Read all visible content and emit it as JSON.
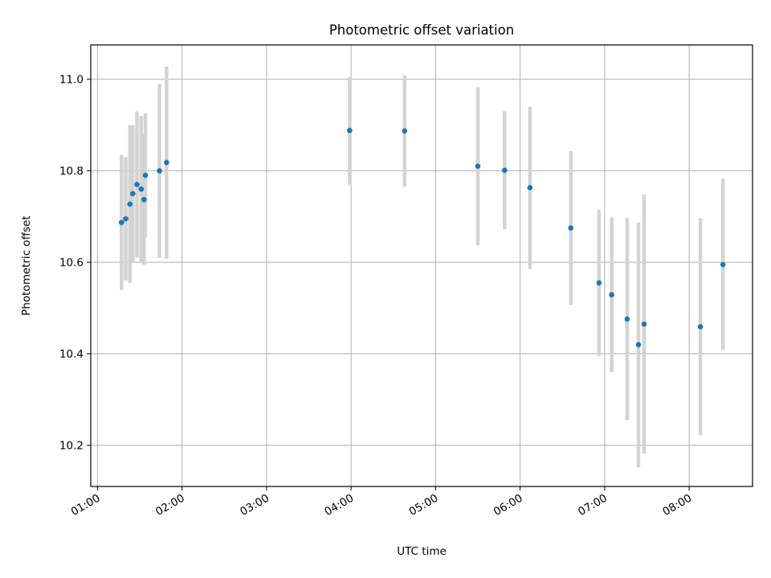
{
  "chart_data": {
    "type": "scatter",
    "title": "Photometric offset variation",
    "xlabel": "UTC time",
    "ylabel": "Photometric offset",
    "x_unit": "UTC time (hours)",
    "xlim": [
      0.92,
      8.75
    ],
    "ylim": [
      10.11,
      11.075
    ],
    "x_ticks": [
      {
        "value": 1,
        "label": "01:00"
      },
      {
        "value": 2,
        "label": "02:00"
      },
      {
        "value": 3,
        "label": "03:00"
      },
      {
        "value": 4,
        "label": "04:00"
      },
      {
        "value": 5,
        "label": "05:00"
      },
      {
        "value": 6,
        "label": "06:00"
      },
      {
        "value": 7,
        "label": "07:00"
      },
      {
        "value": 8,
        "label": "08:00"
      }
    ],
    "y_ticks": [
      {
        "value": 10.2,
        "label": "10.2"
      },
      {
        "value": 10.4,
        "label": "10.4"
      },
      {
        "value": 10.6,
        "label": "10.6"
      },
      {
        "value": 10.8,
        "label": "10.8"
      },
      {
        "value": 11.0,
        "label": "11.0"
      }
    ],
    "grid": true,
    "x_tick_rotation": "rotated",
    "colors": {
      "point": "#1f77b4",
      "errorbar": "#d3d3d3",
      "grid": "#b0b0b0"
    },
    "series": [
      {
        "points": [
          {
            "x": "01:17",
            "y": 10.687,
            "low": 10.54,
            "high": 10.835
          },
          {
            "x": "01:20",
            "y": 10.695,
            "low": 10.56,
            "high": 10.83
          },
          {
            "x": "01:23",
            "y": 10.727,
            "low": 10.555,
            "high": 10.9
          },
          {
            "x": "01:25",
            "y": 10.75,
            "low": 10.6,
            "high": 10.9
          },
          {
            "x": "01:28",
            "y": 10.77,
            "low": 10.61,
            "high": 10.93
          },
          {
            "x": "01:31",
            "y": 10.76,
            "low": 10.6,
            "high": 10.92
          },
          {
            "x": "01:33",
            "y": 10.737,
            "low": 10.595,
            "high": 10.88
          },
          {
            "x": "01:34",
            "y": 10.79,
            "low": 10.655,
            "high": 10.925
          },
          {
            "x": "01:44",
            "y": 10.8,
            "low": 10.61,
            "high": 10.99
          },
          {
            "x": "01:49",
            "y": 10.818,
            "low": 10.608,
            "high": 11.028
          },
          {
            "x": "03:59",
            "y": 10.888,
            "low": 10.77,
            "high": 11.005
          },
          {
            "x": "04:38",
            "y": 10.887,
            "low": 10.765,
            "high": 11.008
          },
          {
            "x": "05:30",
            "y": 10.81,
            "low": 10.637,
            "high": 10.983
          },
          {
            "x": "05:49",
            "y": 10.801,
            "low": 10.672,
            "high": 10.93
          },
          {
            "x": "06:07",
            "y": 10.763,
            "low": 10.585,
            "high": 10.94
          },
          {
            "x": "06:36",
            "y": 10.675,
            "low": 10.507,
            "high": 10.843
          },
          {
            "x": "06:56",
            "y": 10.555,
            "low": 10.395,
            "high": 10.715
          },
          {
            "x": "07:05",
            "y": 10.529,
            "low": 10.36,
            "high": 10.698
          },
          {
            "x": "07:16",
            "y": 10.476,
            "low": 10.255,
            "high": 10.697
          },
          {
            "x": "07:24",
            "y": 10.42,
            "low": 10.152,
            "high": 10.687
          },
          {
            "x": "07:28",
            "y": 10.465,
            "low": 10.182,
            "high": 10.748
          },
          {
            "x": "08:08",
            "y": 10.459,
            "low": 10.222,
            "high": 10.696
          },
          {
            "x": "08:24",
            "y": 10.595,
            "low": 10.408,
            "high": 10.783
          }
        ]
      }
    ]
  }
}
